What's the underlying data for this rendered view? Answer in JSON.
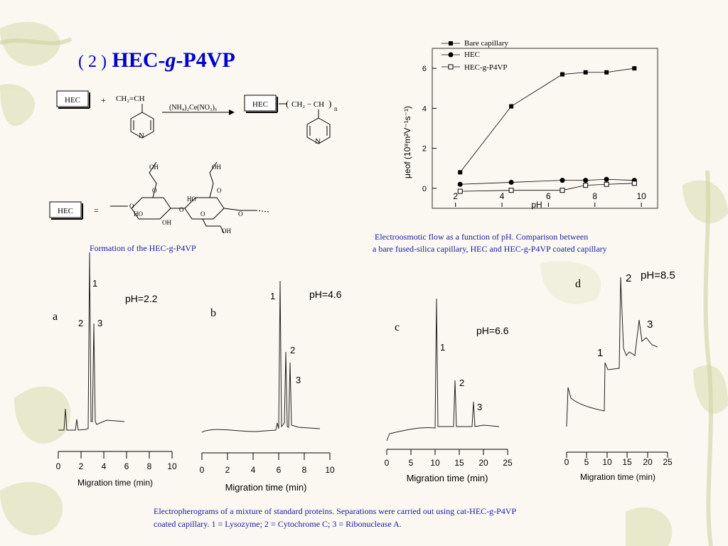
{
  "title": {
    "prefix": "( 2 )",
    "main": "HEC-",
    "italic": "g",
    "suffix": "-P4VP"
  },
  "scheme": {
    "hec_label": "HEC",
    "plus": "+",
    "reagent": "CH₂=CH",
    "catalyst": "(NH₄)₂Ce(NO₃)₆",
    "product_chain": "CH₂ − CH",
    "subscript_n": "n",
    "nitrogen": "N",
    "equals": "=",
    "hydroxyl": "OH",
    "ho": "HO",
    "oxygen": "O",
    "caption": "Formation of the HEC-g-P4VP"
  },
  "eof_chart": {
    "caption_line1": "Electroosmotic flow as a function of pH. Comparison between",
    "caption_line2": "a bare fused-silica capillary, HEC and HEC-g-P4VP coated capillary",
    "xlabel": "pH",
    "ylabel": "μeof (10⁸m²V⁻¹s⁻¹)",
    "xticks": [
      "2",
      "4",
      "6",
      "8",
      "10"
    ],
    "yticks": [
      "0",
      "2",
      "4",
      "6"
    ],
    "legend": [
      "Bare capillary",
      "HEC",
      "HEC-g-P4VP"
    ]
  },
  "chart_data": [
    {
      "type": "line",
      "xlabel": "pH",
      "ylabel": "μeof (10⁸m²V⁻¹s⁻¹)",
      "xlim": [
        1,
        10.7
      ],
      "ylim": [
        -1,
        7
      ],
      "series": [
        {
          "name": "Bare capillary",
          "marker": "filled-square",
          "x": [
            2.2,
            4.4,
            6.6,
            7.6,
            8.5,
            9.7
          ],
          "y": [
            0.8,
            4.1,
            5.7,
            5.8,
            5.8,
            6.0
          ]
        },
        {
          "name": "HEC",
          "marker": "filled-circle",
          "x": [
            2.2,
            4.4,
            6.6,
            7.6,
            8.5,
            9.7
          ],
          "y": [
            0.2,
            0.3,
            0.4,
            0.4,
            0.45,
            0.4
          ]
        },
        {
          "name": "HEC-g-P4VP",
          "marker": "open-square",
          "x": [
            2.2,
            4.4,
            6.6,
            7.6,
            8.5,
            9.7
          ],
          "y": [
            -0.15,
            -0.1,
            -0.1,
            0.15,
            0.2,
            0.25
          ]
        }
      ]
    }
  ],
  "electropherograms": [
    {
      "letter": "a",
      "ph": "pH=2.2",
      "xlabel": "Migration time (min)",
      "xticks": [
        "0",
        "2",
        "4",
        "6",
        "8",
        "10"
      ],
      "peaks": [
        "1",
        "2",
        "3"
      ]
    },
    {
      "letter": "b",
      "ph": "pH=4.6",
      "xlabel": "Migration time (min)",
      "xticks": [
        "0",
        "2",
        "4",
        "6",
        "8",
        "10"
      ],
      "peaks": [
        "1",
        "2",
        "3"
      ]
    },
    {
      "letter": "c",
      "ph": "pH=6.6",
      "xlabel": "Migration time (min)",
      "xticks": [
        "0",
        "5",
        "10",
        "15",
        "20",
        "25"
      ],
      "peaks": [
        "1",
        "2",
        "3"
      ]
    },
    {
      "letter": "d",
      "ph": "pH=8.5",
      "xlabel": "Migration time (min)",
      "xticks": [
        "0",
        "5",
        "10",
        "15",
        "20",
        "25"
      ],
      "peaks": [
        "1",
        "2",
        "3"
      ]
    }
  ],
  "bottom_caption": {
    "line1": "Electropherograms of a mixture of standard proteins. Separations were carried out using cat-HEC-g-P4VP",
    "line2": "coated capillary. 1 = Lysozyme; 2 = Cytochrome C; 3 = Ribonuclease A."
  },
  "colors": {
    "title": "#0000cc",
    "caption": "#1a1aa8",
    "leaf": "#c9cf9a"
  }
}
